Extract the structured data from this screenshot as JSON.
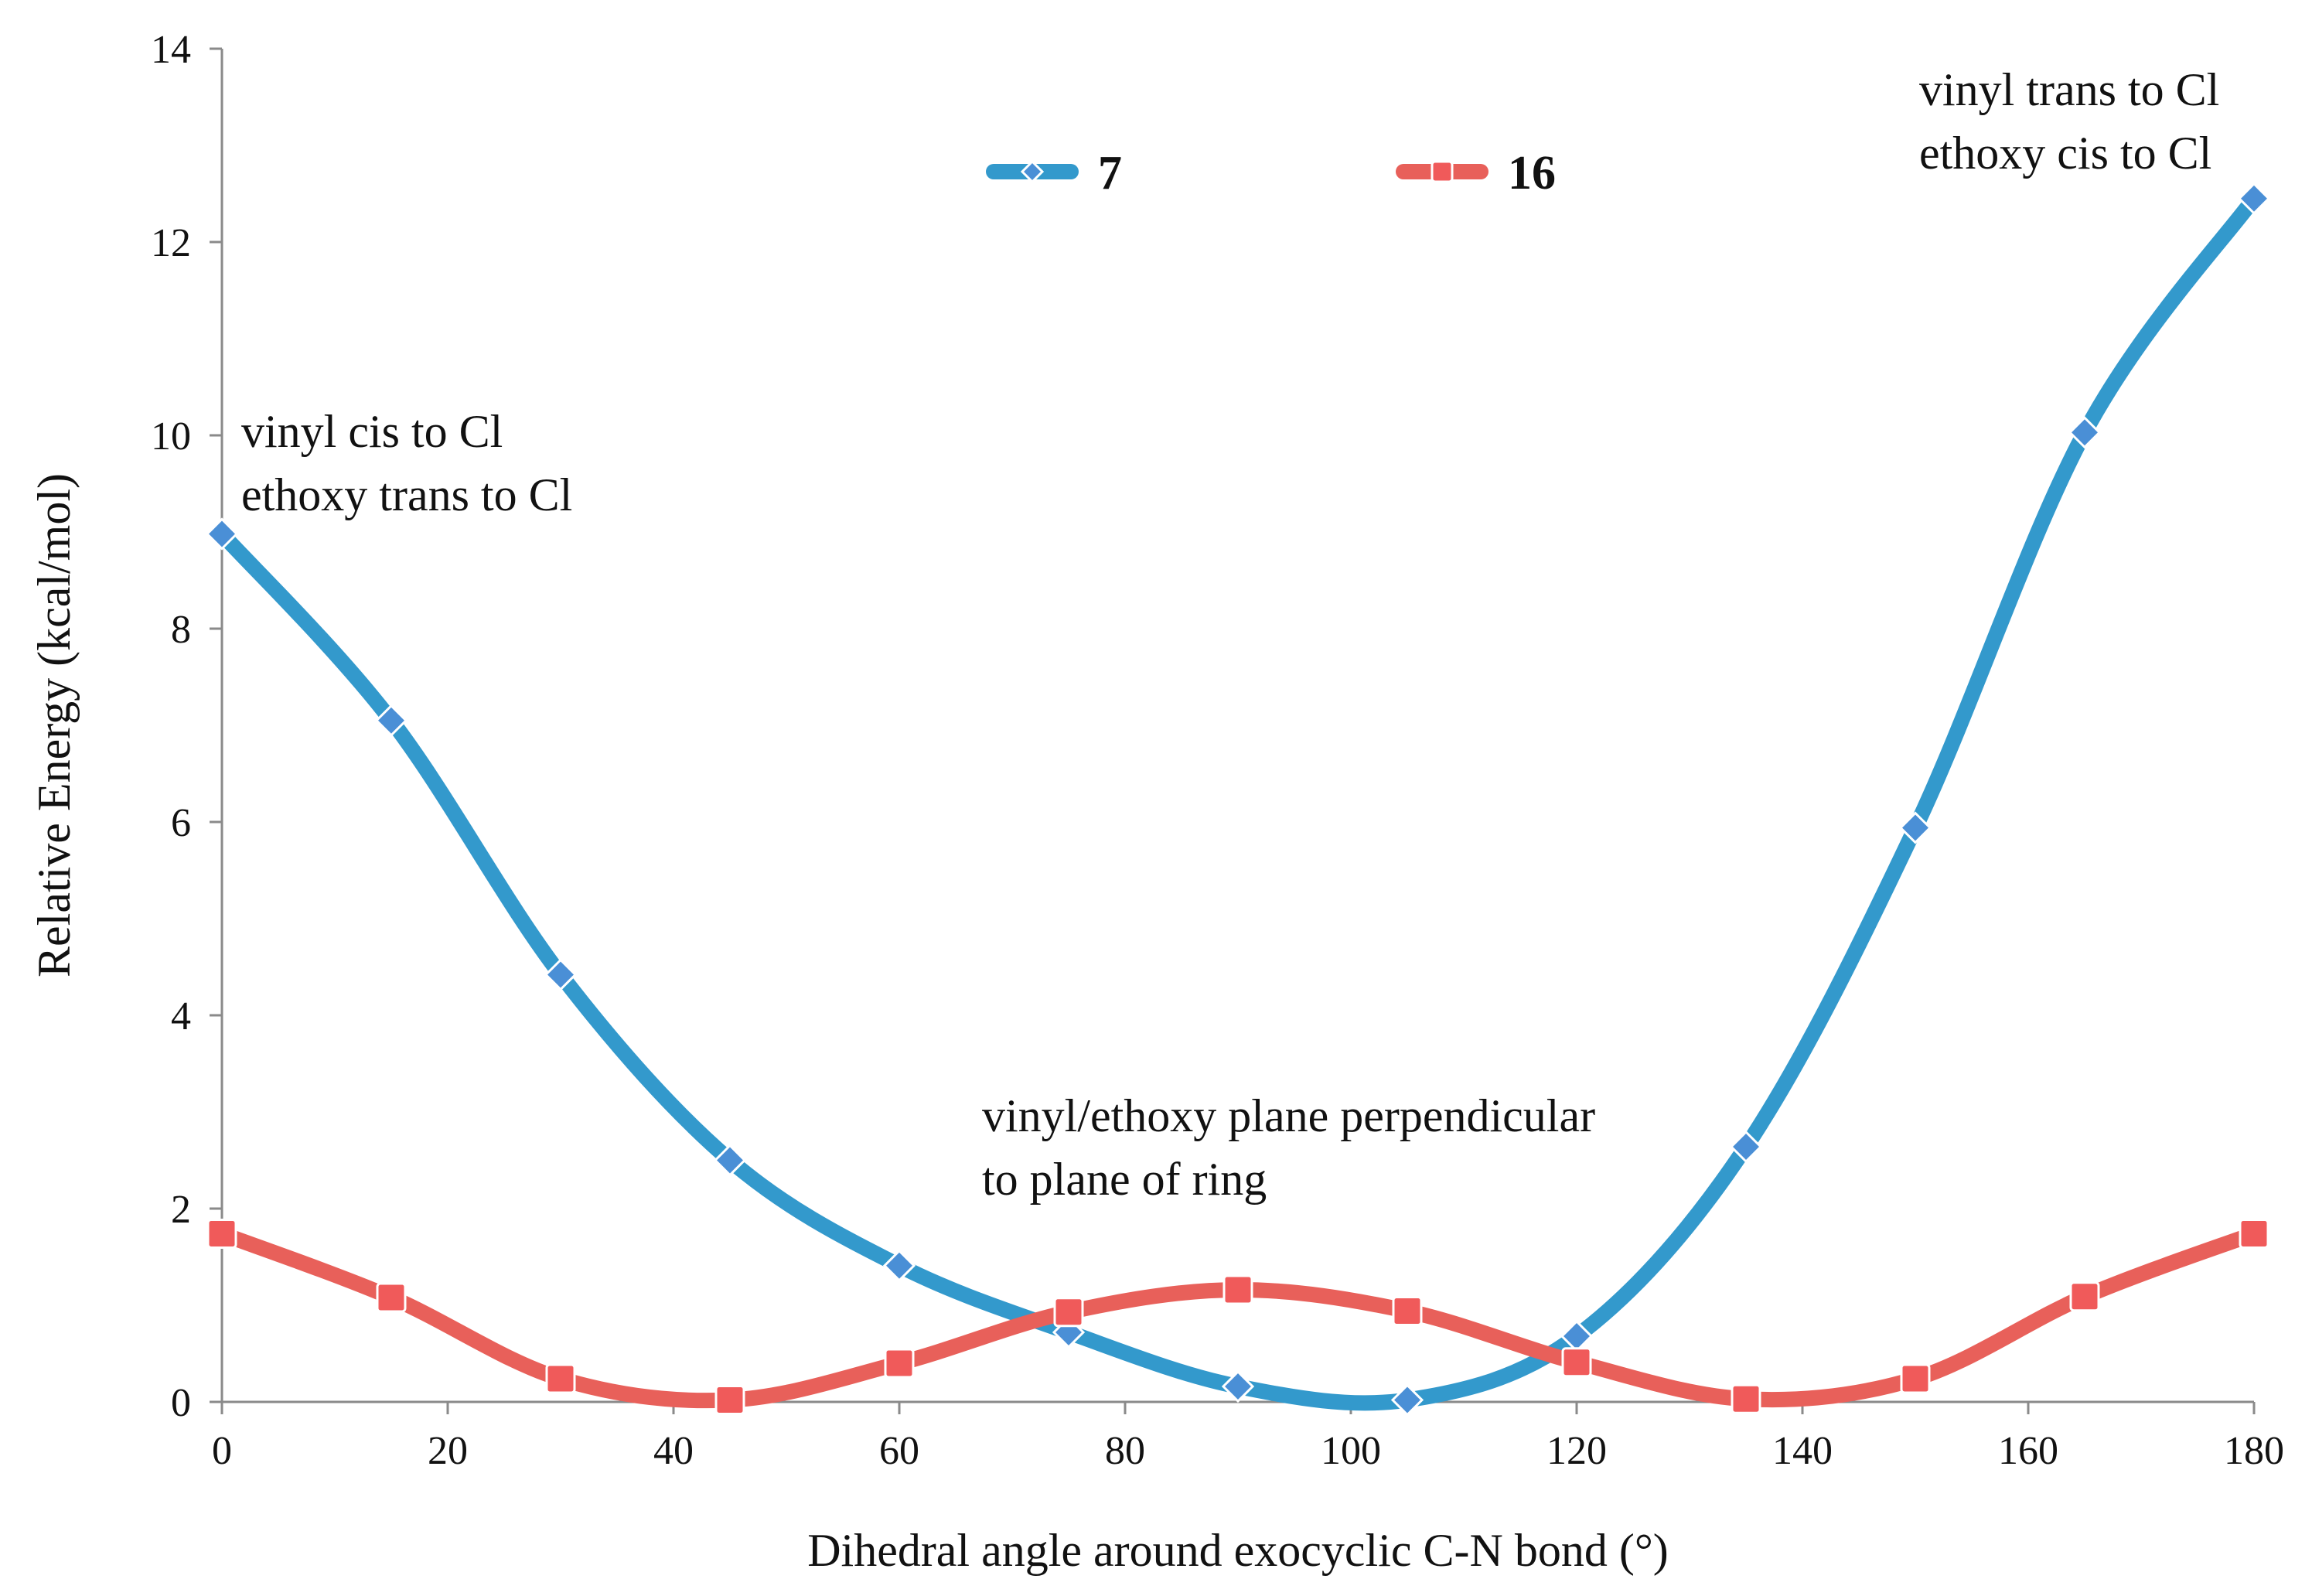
{
  "chart_data": {
    "type": "line",
    "title": "",
    "xlabel": "Dihedral angle around exocyclic C-N bond (°)",
    "ylabel": "Relative Energy (kcal/mol)",
    "xlim": [
      0,
      180
    ],
    "ylim": [
      0,
      14
    ],
    "x_ticks": [
      "0",
      "20",
      "40",
      "60",
      "80",
      "100",
      "120",
      "140",
      "160",
      "180"
    ],
    "y_ticks": [
      "0",
      "2",
      "4",
      "6",
      "8",
      "10",
      "12",
      "14"
    ],
    "grid": false,
    "legend_position": "top-center",
    "x": [
      0,
      15,
      30,
      45,
      60,
      75,
      90,
      105,
      120,
      135,
      150,
      165,
      180
    ],
    "series": [
      {
        "name": "7",
        "color": "#3399CC",
        "marker": "diamond",
        "marker_color": "#4A8FD6",
        "values": [
          8.98,
          7.05,
          4.42,
          2.5,
          1.41,
          0.72,
          0.16,
          0.02,
          0.68,
          2.64,
          5.94,
          10.03,
          12.45
        ]
      },
      {
        "name": "16",
        "color": "#E8605A",
        "marker": "square",
        "marker_color": "#F05A5A",
        "values": [
          1.74,
          1.08,
          0.24,
          0.02,
          0.4,
          0.93,
          1.16,
          0.94,
          0.41,
          0.03,
          0.24,
          1.09,
          1.74
        ]
      }
    ],
    "annotations": [
      {
        "lines": [
          "vinyl cis to Cl",
          "ethoxy trans to Cl"
        ],
        "anchor": "upper-left"
      },
      {
        "lines": [
          "vinyl trans to Cl",
          "ethoxy cis to Cl"
        ],
        "anchor": "upper-right"
      },
      {
        "lines": [
          "vinyl/ethoxy plane perpendicular",
          "to plane of ring"
        ],
        "anchor": "middle-center"
      }
    ]
  }
}
